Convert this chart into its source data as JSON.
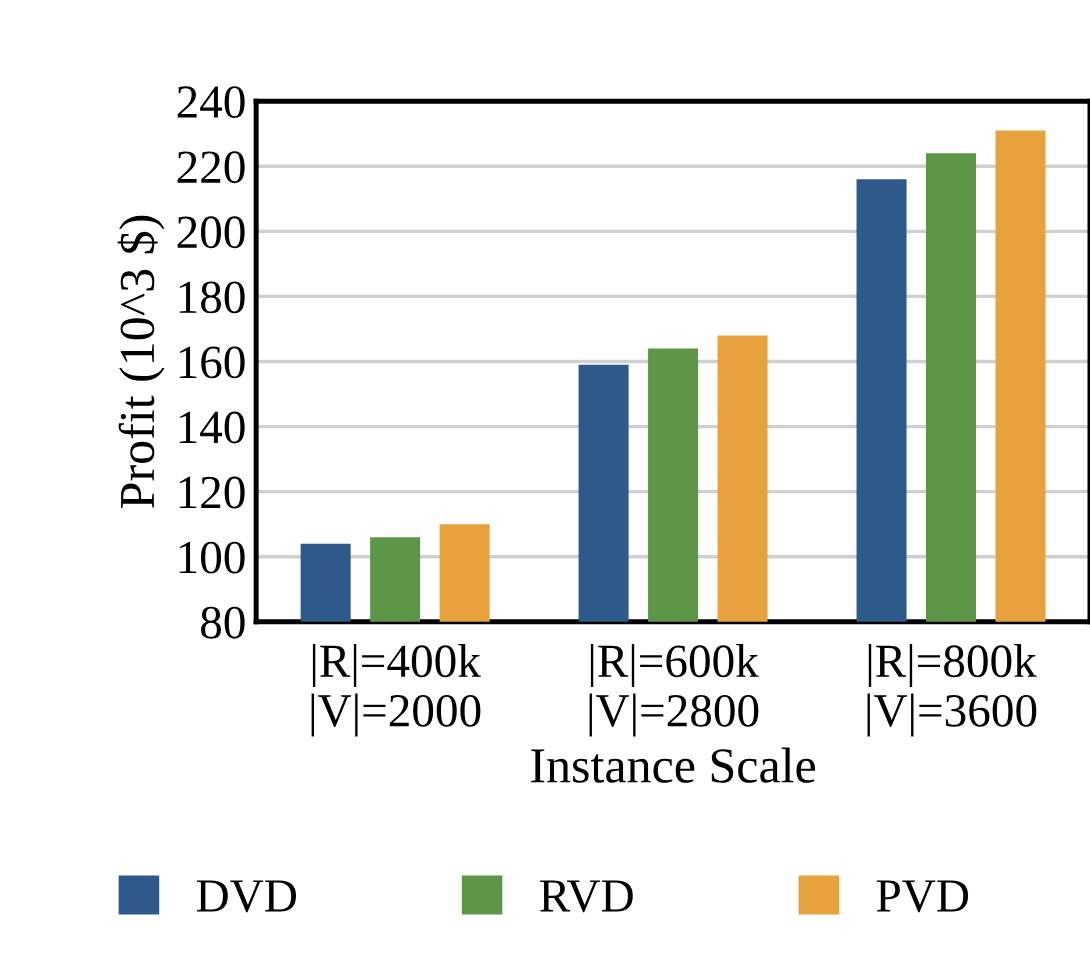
{
  "chart_data": {
    "type": "bar",
    "xlabel": "Instance Scale",
    "ylabel": "Profit (10^3 $)",
    "categories": [
      "|R|=400k\n|V|=2000",
      "|R|=600k\n|V|=2800",
      "|R|=800k\n|V|=3600"
    ],
    "series": [
      {
        "name": "DVD",
        "color": "#2e5a8b",
        "values": [
          104,
          159,
          216
        ]
      },
      {
        "name": "RVD",
        "color": "#5e9648",
        "values": [
          106,
          164,
          224
        ]
      },
      {
        "name": "PVD",
        "color": "#e7a23d",
        "values": [
          110,
          168,
          231
        ]
      }
    ],
    "ylim": [
      80,
      240
    ],
    "yticks": [
      80,
      100,
      120,
      140,
      160,
      180,
      200,
      220,
      240
    ],
    "grid": "y",
    "legend": "bottom"
  }
}
